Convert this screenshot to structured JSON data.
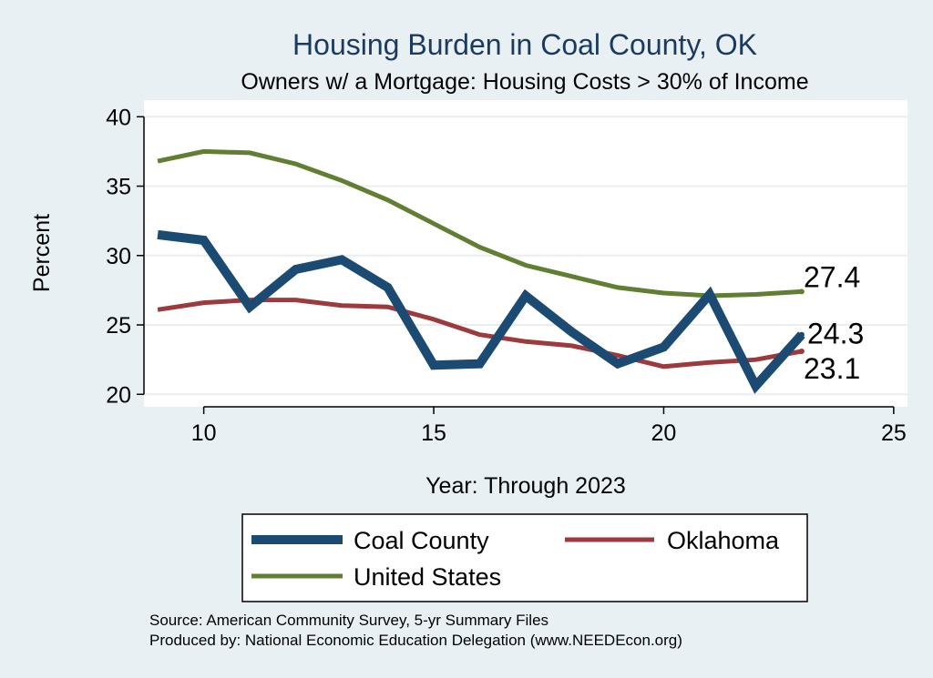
{
  "chart_data": {
    "type": "line",
    "title": "Housing Burden in Coal County, OK",
    "subtitle": "Owners w/ a Mortgage: Housing Costs > 30% of Income",
    "xlabel": "Year: Through 2023",
    "ylabel": "Percent",
    "xlim": [
      8.7,
      25.3
    ],
    "ylim": [
      19.1,
      41.2
    ],
    "xticks": [
      10,
      15,
      20,
      25
    ],
    "yticks": [
      20,
      25,
      30,
      35,
      40
    ],
    "grid": true,
    "legend_position": "bottom",
    "x": [
      9,
      10,
      11,
      12,
      13,
      14,
      15,
      16,
      17,
      18,
      19,
      20,
      21,
      22,
      23
    ],
    "series": [
      {
        "name": "Coal County",
        "color": "#1b4a73",
        "width": "thick",
        "values": [
          31.5,
          31.1,
          26.3,
          29.0,
          29.7,
          27.7,
          22.1,
          22.2,
          27.1,
          24.5,
          22.2,
          23.4,
          27.2,
          20.6,
          24.3
        ],
        "end_label": "24.3"
      },
      {
        "name": "Oklahoma",
        "color": "#9c3a3e",
        "width": "medium",
        "values": [
          26.1,
          26.6,
          26.8,
          26.8,
          26.4,
          26.3,
          25.4,
          24.3,
          23.8,
          23.5,
          22.8,
          22.0,
          22.3,
          22.5,
          23.1
        ],
        "end_label": "23.1"
      },
      {
        "name": "United States",
        "color": "#607f32",
        "width": "medium",
        "values": [
          36.8,
          37.5,
          37.4,
          36.6,
          35.4,
          34.0,
          32.3,
          30.6,
          29.3,
          28.5,
          27.7,
          27.3,
          27.1,
          27.2,
          27.4
        ],
        "end_label": "27.4"
      }
    ],
    "notes": [
      "Source: American Community Survey, 5-yr Summary Files",
      "Produced by: National Economic Education Delegation (www.NEEDEcon.org)"
    ]
  }
}
